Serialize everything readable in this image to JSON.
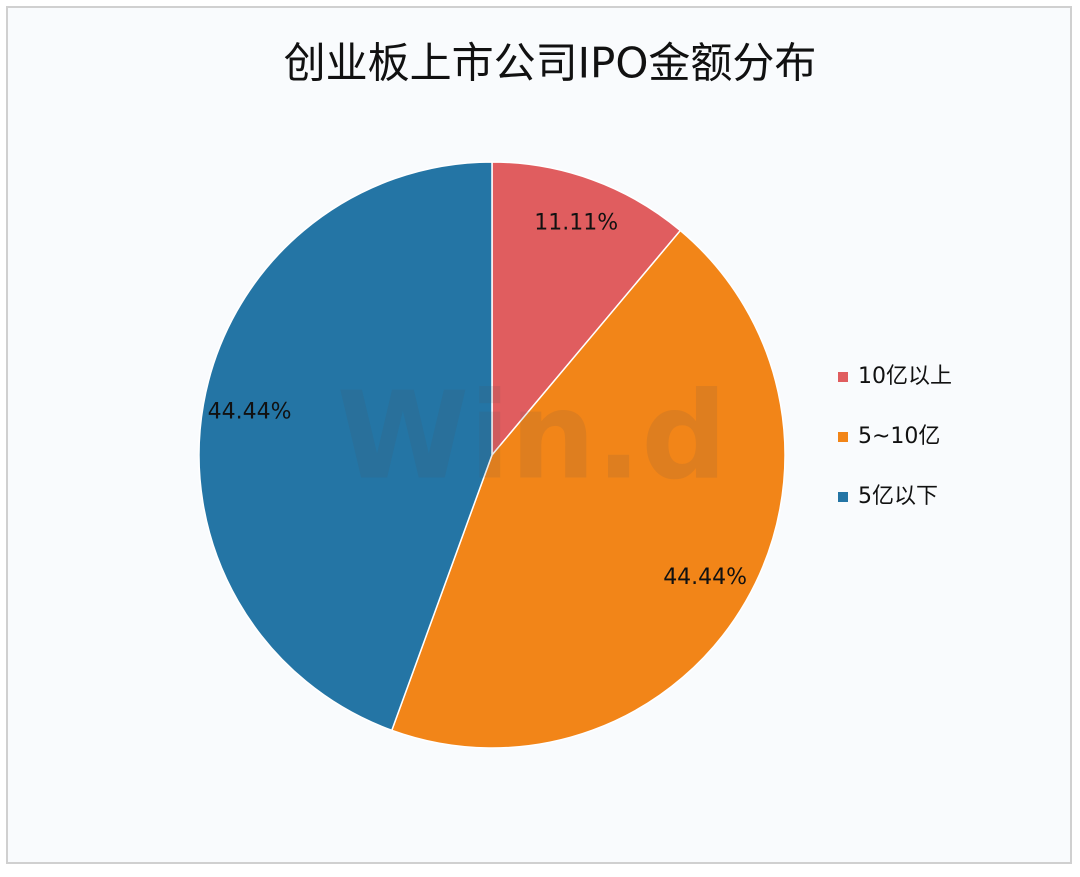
{
  "chart_data": {
    "type": "pie",
    "title": "创业板上市公司IPO金额分布",
    "watermark": "Win.d",
    "categories": [
      "10亿以上",
      "5~10亿",
      "5亿以下"
    ],
    "values": [
      11.11,
      44.44,
      44.44
    ],
    "value_labels": [
      "11.11%",
      "44.44%",
      "44.44%"
    ],
    "colors": [
      "#e05d5f",
      "#f28518",
      "#2475a5"
    ],
    "legend": "right"
  }
}
